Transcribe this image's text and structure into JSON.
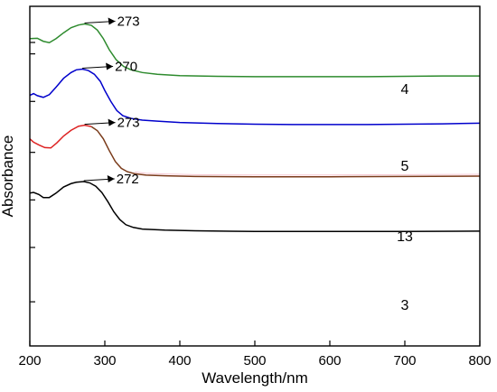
{
  "chart_data": {
    "type": "line",
    "xlabel": "Wavelength/nm",
    "ylabel": "Absorbance",
    "xlim": [
      200,
      800
    ],
    "xticks": [
      200,
      300,
      400,
      500,
      600,
      700,
      800
    ],
    "yticks_labeled": false,
    "grid": false,
    "legend": "none",
    "series": [
      {
        "name": "4",
        "color": "#2e8b2e",
        "peak_label": "273",
        "points": [
          [
            200,
            0.905
          ],
          [
            210,
            0.906
          ],
          [
            218,
            0.897
          ],
          [
            226,
            0.893
          ],
          [
            235,
            0.905
          ],
          [
            245,
            0.922
          ],
          [
            255,
            0.937
          ],
          [
            265,
            0.945
          ],
          [
            273,
            0.948
          ],
          [
            282,
            0.944
          ],
          [
            290,
            0.93
          ],
          [
            298,
            0.905
          ],
          [
            306,
            0.872
          ],
          [
            315,
            0.843
          ],
          [
            325,
            0.823
          ],
          [
            335,
            0.813
          ],
          [
            350,
            0.805
          ],
          [
            370,
            0.8
          ],
          [
            400,
            0.796
          ],
          [
            450,
            0.794
          ],
          [
            500,
            0.793
          ],
          [
            550,
            0.793
          ],
          [
            600,
            0.793
          ],
          [
            650,
            0.793
          ],
          [
            700,
            0.794
          ],
          [
            750,
            0.795
          ],
          [
            800,
            0.795
          ]
        ]
      },
      {
        "name": "5",
        "color": "#0000cc",
        "peak_label": "270",
        "points": [
          [
            200,
            0.738
          ],
          [
            205,
            0.743
          ],
          [
            210,
            0.737
          ],
          [
            218,
            0.732
          ],
          [
            226,
            0.74
          ],
          [
            235,
            0.762
          ],
          [
            245,
            0.788
          ],
          [
            255,
            0.805
          ],
          [
            262,
            0.813
          ],
          [
            270,
            0.815
          ],
          [
            278,
            0.811
          ],
          [
            286,
            0.8
          ],
          [
            294,
            0.779
          ],
          [
            300,
            0.752
          ],
          [
            308,
            0.72
          ],
          [
            316,
            0.693
          ],
          [
            324,
            0.678
          ],
          [
            335,
            0.67
          ],
          [
            350,
            0.665
          ],
          [
            370,
            0.662
          ],
          [
            400,
            0.658
          ],
          [
            450,
            0.655
          ],
          [
            500,
            0.653
          ],
          [
            550,
            0.652
          ],
          [
            600,
            0.652
          ],
          [
            650,
            0.652
          ],
          [
            700,
            0.653
          ],
          [
            750,
            0.654
          ],
          [
            800,
            0.656
          ]
        ]
      },
      {
        "name": "13",
        "color": "#dd2222",
        "color_tail": "#7a3b1a",
        "peak_label": "273",
        "points": [
          [
            200,
            0.61
          ],
          [
            205,
            0.6
          ],
          [
            212,
            0.592
          ],
          [
            220,
            0.584
          ],
          [
            228,
            0.583
          ],
          [
            236,
            0.598
          ],
          [
            245,
            0.618
          ],
          [
            255,
            0.635
          ],
          [
            265,
            0.647
          ],
          [
            273,
            0.65
          ],
          [
            282,
            0.646
          ],
          [
            290,
            0.634
          ],
          [
            298,
            0.61
          ],
          [
            306,
            0.575
          ],
          [
            314,
            0.543
          ],
          [
            322,
            0.523
          ],
          [
            330,
            0.513
          ],
          [
            340,
            0.507
          ],
          [
            355,
            0.503
          ],
          [
            380,
            0.501
          ],
          [
            420,
            0.499
          ],
          [
            500,
            0.498
          ],
          [
            600,
            0.498
          ],
          [
            700,
            0.499
          ],
          [
            800,
            0.5
          ]
        ]
      },
      {
        "name": "3",
        "color": "#000000",
        "peak_label": "272",
        "points": [
          [
            200,
            0.45
          ],
          [
            205,
            0.452
          ],
          [
            212,
            0.446
          ],
          [
            218,
            0.437
          ],
          [
            226,
            0.437
          ],
          [
            235,
            0.45
          ],
          [
            245,
            0.468
          ],
          [
            255,
            0.478
          ],
          [
            262,
            0.482
          ],
          [
            272,
            0.484
          ],
          [
            280,
            0.48
          ],
          [
            288,
            0.47
          ],
          [
            296,
            0.452
          ],
          [
            304,
            0.425
          ],
          [
            312,
            0.395
          ],
          [
            320,
            0.372
          ],
          [
            328,
            0.357
          ],
          [
            338,
            0.349
          ],
          [
            350,
            0.344
          ],
          [
            380,
            0.341
          ],
          [
            420,
            0.339
          ],
          [
            500,
            0.337
          ],
          [
            600,
            0.337
          ],
          [
            700,
            0.337
          ],
          [
            800,
            0.338
          ]
        ]
      }
    ]
  }
}
